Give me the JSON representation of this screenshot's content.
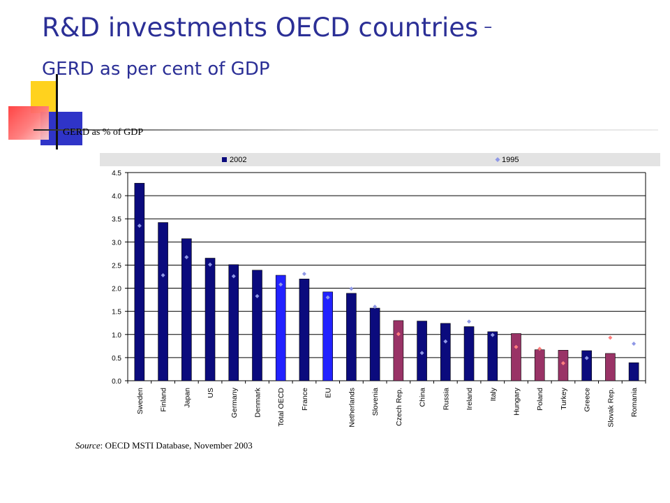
{
  "slide": {
    "title": "R&D investments OECD countries",
    "title_dash": "–",
    "subtitle": "GERD as per cent of GDP",
    "chart_label": "GERD as % of GDP",
    "source_label": "Source",
    "source_text": ": OECD MSTI Database, November 2003"
  },
  "colors": {
    "title": "#2b2f96",
    "bar_default": "#0b0b7d",
    "bar_highlight": "#2222ff",
    "bar_accession": "#993366",
    "marker_default": "#8f98e6",
    "marker_accession": "#ff7e7e",
    "legend_band": "#e3e3e3"
  },
  "chart_data": {
    "type": "bar",
    "legend_position": "top",
    "grid": true,
    "ylim": [
      0,
      4.5
    ],
    "yticks": [
      "0.0",
      "0.5",
      "1.0",
      "1.5",
      "2.0",
      "2.5",
      "3.0",
      "3.5",
      "4.0",
      "4.5"
    ],
    "categories": [
      "Sweden",
      "Finland",
      "Japan",
      "US",
      "Germany",
      "Denmark",
      "Total OECD",
      "France",
      "EU",
      "Netherlands",
      "Slovenia",
      "Czech Rep.",
      "China",
      "Russia",
      "Ireland",
      "Italy",
      "Hungary",
      "Poland",
      "Turkey",
      "Greece",
      "Slovak Rep.",
      "Romania"
    ],
    "bar_groups": [
      "default",
      "default",
      "default",
      "default",
      "default",
      "default",
      "highlight",
      "default",
      "highlight",
      "default",
      "default",
      "accession",
      "default",
      "default",
      "default",
      "default",
      "accession",
      "accession",
      "accession",
      "default",
      "accession",
      "default"
    ],
    "series": [
      {
        "name": "2002",
        "type": "bar",
        "values": [
          4.27,
          3.42,
          3.07,
          2.65,
          2.51,
          2.39,
          2.28,
          2.2,
          1.92,
          1.89,
          1.57,
          1.3,
          1.29,
          1.24,
          1.17,
          1.06,
          1.02,
          0.67,
          0.66,
          0.65,
          0.59,
          0.39
        ]
      },
      {
        "name": "1995",
        "type": "scatter",
        "values": [
          3.35,
          2.28,
          2.67,
          2.51,
          2.26,
          1.83,
          2.08,
          2.31,
          1.8,
          1.99,
          1.6,
          1.01,
          0.6,
          0.85,
          1.28,
          0.99,
          0.73,
          0.69,
          0.38,
          0.49,
          0.93,
          0.8
        ]
      }
    ]
  }
}
